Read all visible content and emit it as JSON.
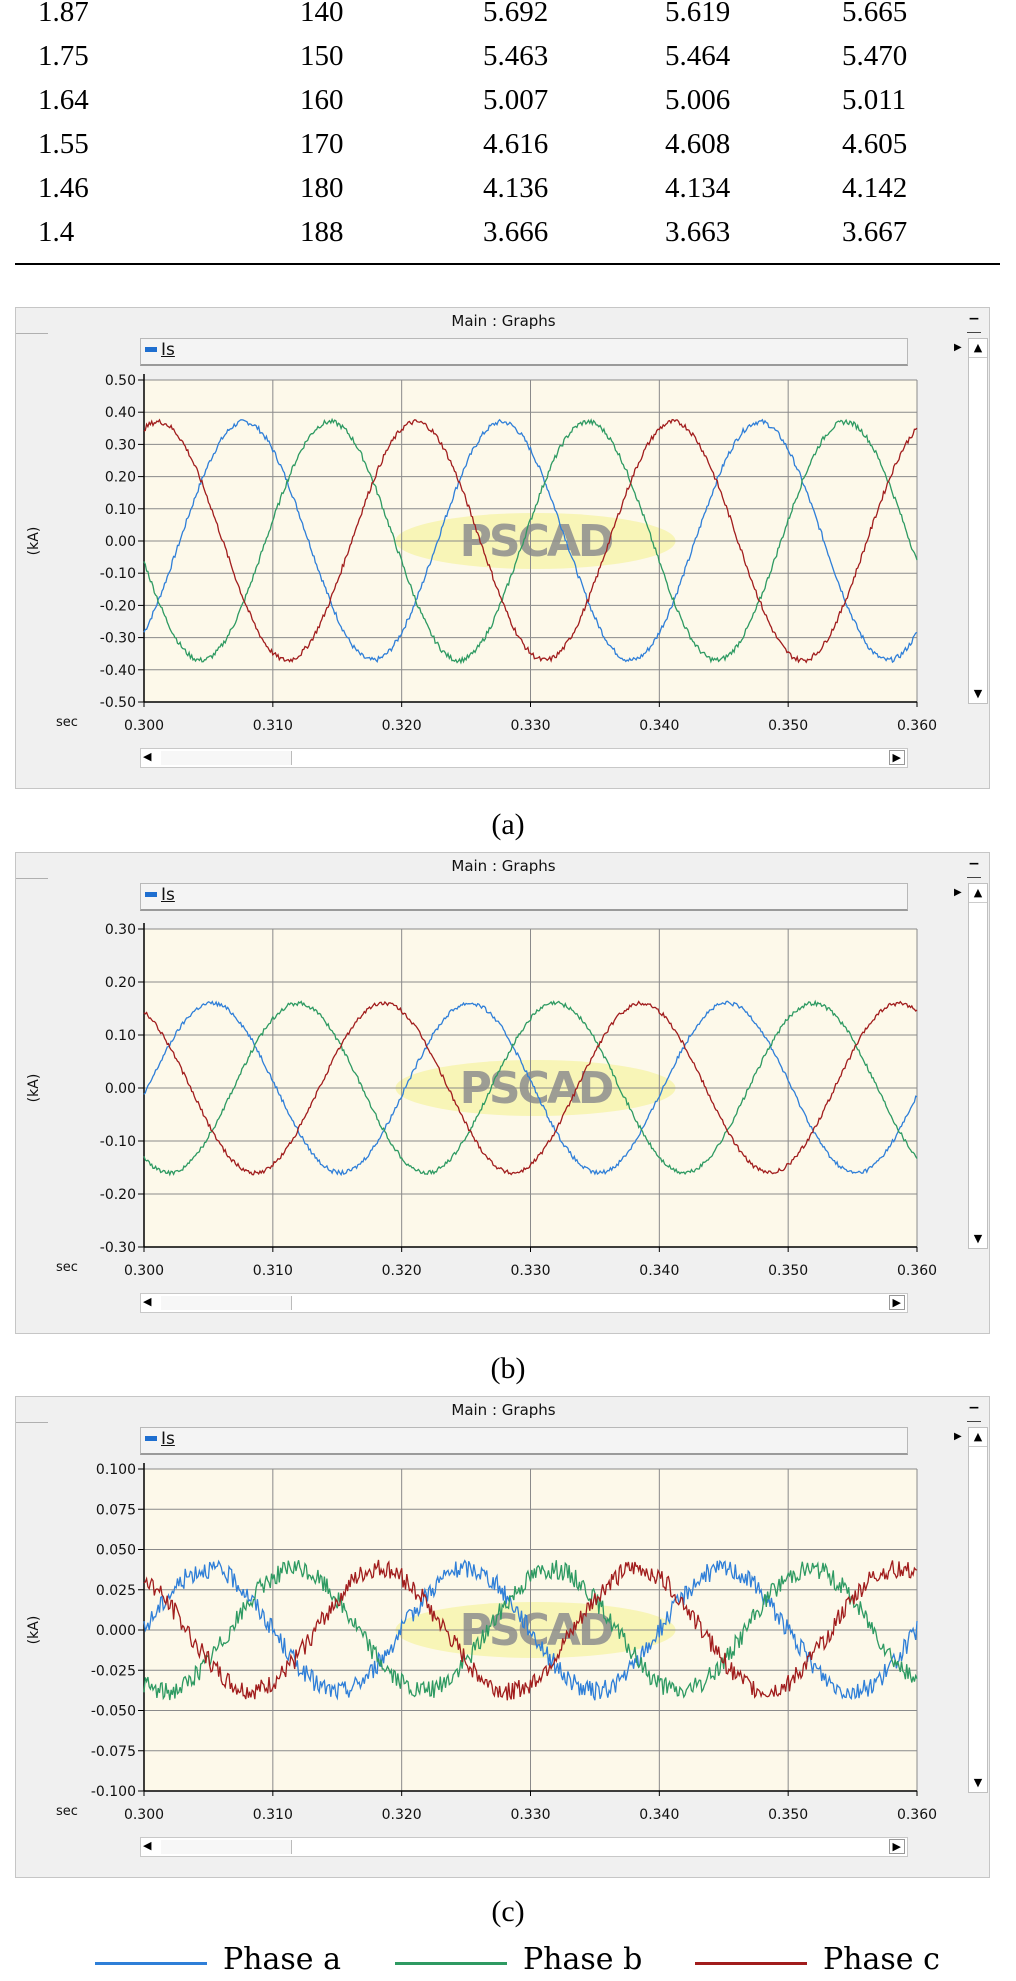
{
  "table": {
    "rows": [
      [
        "1.87",
        "140",
        "5.692",
        "5.619",
        "5.665"
      ],
      [
        "1.75",
        "150",
        "5.463",
        "5.464",
        "5.470"
      ],
      [
        "1.64",
        "160",
        "5.007",
        "5.006",
        "5.011"
      ],
      [
        "1.55",
        "170",
        "4.616",
        "4.608",
        "4.605"
      ],
      [
        "1.46",
        "180",
        "4.136",
        "4.134",
        "4.142"
      ],
      [
        "1.4",
        "188",
        "3.666",
        "3.663",
        "3.667"
      ]
    ]
  },
  "watermark": "PSCAD",
  "chart_data": [
    {
      "type": "line",
      "caption": "(a)",
      "window_title": "Main : Graphs",
      "legend_label": "Is",
      "xlabel": "sec",
      "ylabel": "(kA)",
      "xlim": [
        0.3,
        0.36
      ],
      "ylim": [
        -0.5,
        0.5
      ],
      "xticks": [
        "0.300",
        "0.310",
        "0.320",
        "0.330",
        "0.340",
        "0.350",
        "0.360"
      ],
      "yticks": [
        "0.50",
        "0.40",
        "0.30",
        "0.20",
        "0.10",
        "0.00",
        "-0.10",
        "-0.20",
        "-0.30",
        "-0.40",
        "-0.50"
      ],
      "amplitude": 0.37,
      "frequency_hz": 50,
      "series": [
        {
          "name": "Phase a",
          "color": "#2f7fd8",
          "phase_deg": -50
        },
        {
          "name": "Phase b",
          "color": "#2e9a62",
          "phase_deg": -170
        },
        {
          "name": "Phase c",
          "color": "#a11d1d",
          "phase_deg": 70
        }
      ]
    },
    {
      "type": "line",
      "caption": "(b)",
      "window_title": "Main : Graphs",
      "legend_label": "Is",
      "xlabel": "sec",
      "ylabel": "(kA)",
      "xlim": [
        0.3,
        0.36
      ],
      "ylim": [
        -0.3,
        0.3
      ],
      "xticks": [
        "0.300",
        "0.310",
        "0.320",
        "0.330",
        "0.340",
        "0.350",
        "0.360"
      ],
      "yticks": [
        "0.30",
        "0.20",
        "0.10",
        "0.00",
        "-0.10",
        "-0.20",
        "-0.30"
      ],
      "amplitude": 0.16,
      "frequency_hz": 50,
      "series": [
        {
          "name": "Phase a",
          "color": "#2f7fd8",
          "phase_deg": -5
        },
        {
          "name": "Phase b",
          "color": "#2e9a62",
          "phase_deg": -125
        },
        {
          "name": "Phase c",
          "color": "#a11d1d",
          "phase_deg": 115
        }
      ]
    },
    {
      "type": "line",
      "caption": "(c)",
      "window_title": "Main : Graphs",
      "legend_label": "Is",
      "xlabel": "sec",
      "ylabel": "(kA)",
      "xlim": [
        0.3,
        0.36
      ],
      "ylim": [
        -0.1,
        0.1
      ],
      "xticks": [
        "0.300",
        "0.310",
        "0.320",
        "0.330",
        "0.340",
        "0.350",
        "0.360"
      ],
      "yticks": [
        "0.100",
        "0.075",
        "0.050",
        "0.025",
        "0.000",
        "-0.025",
        "-0.050",
        "-0.075",
        "-0.100"
      ],
      "amplitude": 0.038,
      "frequency_hz": 50,
      "series": [
        {
          "name": "Phase a",
          "color": "#2f7fd8",
          "phase_deg": 0
        },
        {
          "name": "Phase b",
          "color": "#2e9a62",
          "phase_deg": -120
        },
        {
          "name": "Phase c",
          "color": "#a11d1d",
          "phase_deg": 120
        }
      ]
    }
  ],
  "legend": [
    {
      "label": "Phase a",
      "color": "#2f7fd8"
    },
    {
      "label": "Phase b",
      "color": "#2e9a62"
    },
    {
      "label": "Phase c",
      "color": "#a11d1d"
    }
  ]
}
